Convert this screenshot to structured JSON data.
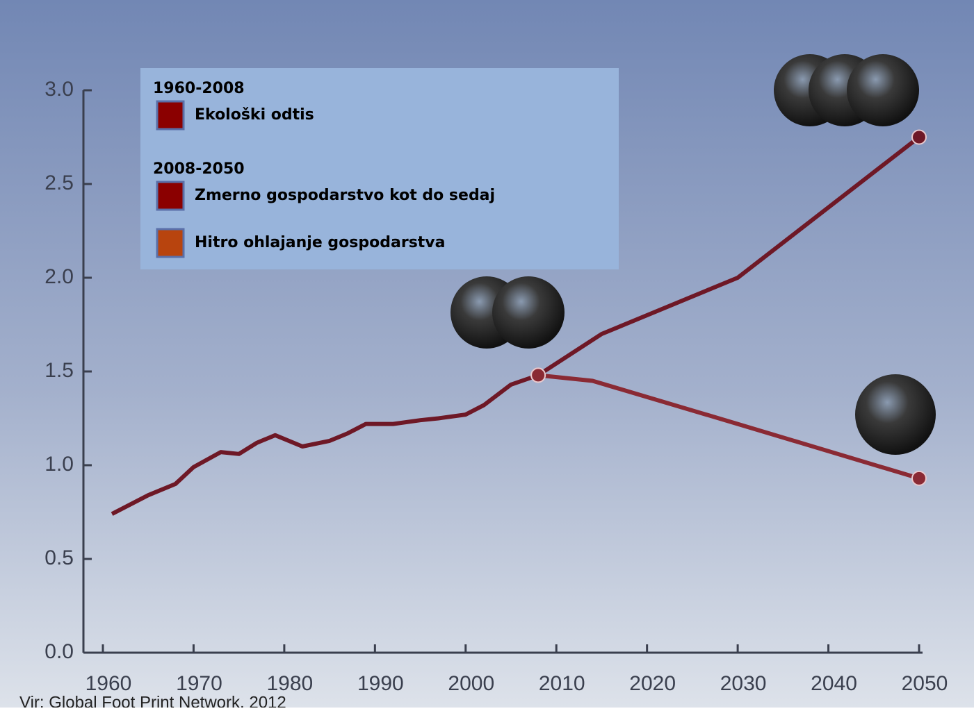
{
  "chart_data": {
    "type": "line",
    "legend_headings": [
      "1960-2008",
      "2008-2050"
    ],
    "series": [
      {
        "name": "Ekološki odtis",
        "color": "#6e1826",
        "marker_color": "#8b0000",
        "x": [
          1961,
          1963,
          1965,
          1968,
          1970,
          1973,
          1975,
          1977,
          1979,
          1982,
          1985,
          1987,
          1989,
          1992,
          1995,
          1997,
          2000,
          2002,
          2005,
          2008
        ],
        "values": [
          0.74,
          0.79,
          0.84,
          0.9,
          0.99,
          1.07,
          1.06,
          1.12,
          1.16,
          1.1,
          1.13,
          1.17,
          1.22,
          1.22,
          1.24,
          1.25,
          1.27,
          1.32,
          1.43,
          1.48
        ]
      },
      {
        "name": "Zmerno gospodarstvo kot do sedaj",
        "color": "#6e1826",
        "marker_color": "#8b0000",
        "x": [
          2008,
          2015,
          2030,
          2050
        ],
        "values": [
          1.48,
          1.7,
          2.0,
          2.75
        ]
      },
      {
        "name": "Hitro ohlajanje gospodarstva",
        "color": "#8a2a34",
        "marker_color": "#b8440e",
        "x": [
          2008,
          2014,
          2030,
          2050
        ],
        "values": [
          1.48,
          1.45,
          1.22,
          0.93
        ]
      }
    ],
    "xlim": [
      1960,
      2050
    ],
    "xticks": [
      1960,
      1970,
      1980,
      1990,
      2000,
      2010,
      2020,
      2030,
      2040,
      2050
    ],
    "ylim": [
      0,
      3
    ],
    "yticks": [
      {
        "value": 0,
        "label": "0.0"
      },
      0.5,
      {
        "value": 1,
        "label": "1.0"
      },
      1.5,
      {
        "value": 2,
        "label": "2.0"
      },
      2.5,
      {
        "value": 3,
        "label": "3.0"
      }
    ],
    "grid": false,
    "source": "Vir: Global Foot Print Network, 2012"
  }
}
